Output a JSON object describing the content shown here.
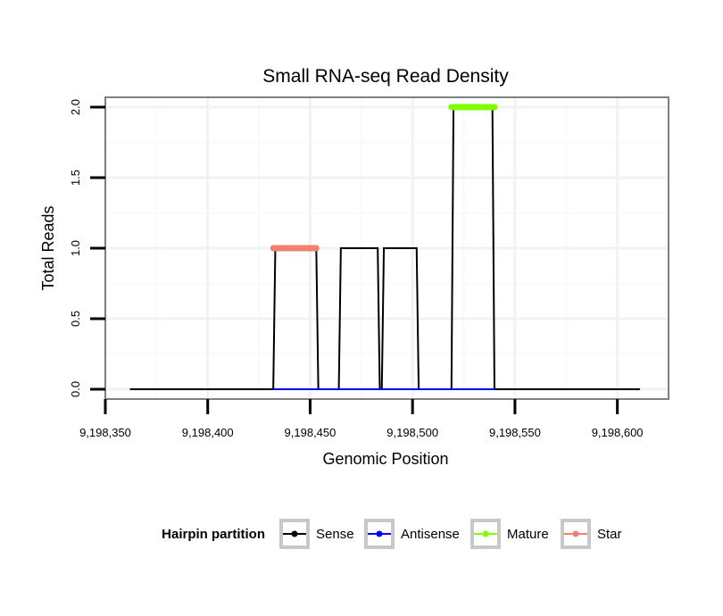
{
  "chart_data": {
    "type": "line",
    "title": "Small RNA-seq Read Density",
    "xlabel": "Genomic Position",
    "ylabel": "Total Reads",
    "xlim": [
      9198350,
      9198625
    ],
    "ylim": [
      -0.07,
      2.07
    ],
    "x_ticks": [
      9198350,
      9198400,
      9198450,
      9198500,
      9198550,
      9198600
    ],
    "x_tick_labels": [
      "9,198,350",
      "9,198,400",
      "9,198,450",
      "9,198,500",
      "9,198,550",
      "9,198,600"
    ],
    "y_ticks": [
      0,
      0.5,
      1,
      1.5,
      2
    ],
    "y_tick_labels": [
      "0.0",
      "0.5",
      "1.0",
      "1.5",
      "2.0"
    ],
    "grid": true,
    "legend_title": "Hairpin partition",
    "legend_position": "bottom",
    "series": [
      {
        "name": "Sense",
        "color": "#000000",
        "x": [
          9198362,
          9198432,
          9198433,
          9198453,
          9198454,
          9198464,
          9198465,
          9198483,
          9198484,
          9198485,
          9198486,
          9198502,
          9198503,
          9198519,
          9198520,
          9198539,
          9198540,
          9198611
        ],
        "y": [
          0,
          0,
          1,
          1,
          0,
          0,
          1,
          1,
          0,
          0,
          1,
          1,
          0,
          0,
          2,
          2,
          0,
          0
        ]
      },
      {
        "name": "Antisense",
        "color": "#0000ff",
        "x": [
          9198432,
          9198540
        ],
        "y": [
          0,
          0
        ]
      },
      {
        "name": "Mature",
        "color": "#7fff00",
        "x": [
          9198519,
          9198540
        ],
        "y": [
          2,
          2
        ]
      },
      {
        "name": "Star",
        "color": "#f08070",
        "x": [
          9198432,
          9198453
        ],
        "y": [
          1,
          1
        ]
      }
    ]
  }
}
